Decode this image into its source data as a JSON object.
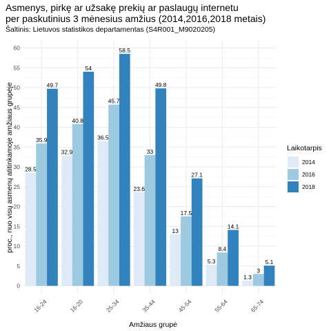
{
  "chart_data": {
    "type": "bar",
    "title_lines": [
      "Asmenys, pirkę ar užsakę prekių ar paslaugų internetu",
      "per paskutinius 3 mėnesius amžius (2014,2016,2018 metais)"
    ],
    "subtitle": "Šaltinis: Lietuvos statistikos departamentas (S4R001_M9020205)",
    "xlabel": "Amžiaus grupė",
    "ylabel": "proc., nuo visų asmenų atitinkamoje amžiaus grupėje",
    "categories": [
      "16-24",
      "16-20",
      "25-34",
      "35-44",
      "45-54",
      "55-64",
      "65-74"
    ],
    "series": [
      {
        "name": "2014",
        "color": "#deebf7",
        "values": [
          28.5,
          32.9,
          36.5,
          23.6,
          13,
          5.3,
          1.3
        ]
      },
      {
        "name": "2016",
        "color": "#9ecae1",
        "values": [
          35.9,
          40.8,
          45.7,
          33,
          17.5,
          8.4,
          3
        ]
      },
      {
        "name": "2018",
        "color": "#3182bd",
        "values": [
          49.7,
          54,
          58.5,
          49.8,
          27.1,
          14.1,
          5.1
        ]
      }
    ],
    "ylim": [
      -2,
      62
    ],
    "yticks": [
      0,
      5,
      10,
      15,
      20,
      25,
      30,
      35,
      40,
      45,
      50,
      55,
      60
    ],
    "grid": true,
    "legend": {
      "title": "Laikotarpis",
      "position": "right"
    }
  }
}
